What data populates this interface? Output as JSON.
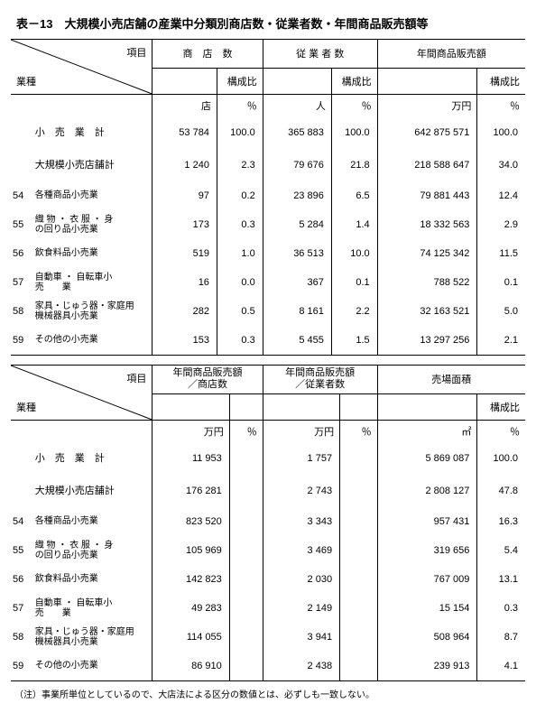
{
  "title": "表－13　大規模小売店舗の産業中分類別商店数・従業者数・年間商品販売額等",
  "diag_labels": {
    "item": "項目",
    "industry": "業種"
  },
  "headers_top": {
    "c1": "商　店　数",
    "c2": "従 業 者 数",
    "c3": "年間商品販売額",
    "ratio": "構成比"
  },
  "units_top": {
    "u1": "店",
    "u2": "％",
    "u3": "人",
    "u4": "％",
    "u5": "万円",
    "u6": "％"
  },
  "rows_top": [
    {
      "code": "",
      "name": "小　売　業　計",
      "v": [
        "53 784",
        "100.0",
        "365 883",
        "100.0",
        "642 875 571",
        "100.0"
      ]
    },
    {
      "code": "",
      "name": "大規模小売店舗計",
      "v": [
        "1 240",
        "2.3",
        "79 676",
        "21.8",
        "218 588 647",
        "34.0"
      ]
    },
    {
      "code": "54",
      "name": "各種商品小売業",
      "v": [
        "97",
        "0.2",
        "23 896",
        "6.5",
        "79 881 443",
        "12.4"
      ]
    },
    {
      "code": "55",
      "name": "織 物 ・ 衣 服 ・ 身\nの回り品小売業",
      "v": [
        "173",
        "0.3",
        "5 284",
        "1.4",
        "18 332 563",
        "2.9"
      ]
    },
    {
      "code": "56",
      "name": "飲食料品小売業",
      "v": [
        "519",
        "1.0",
        "36 513",
        "10.0",
        "74 125 342",
        "11.5"
      ]
    },
    {
      "code": "57",
      "name": "自動車 ・ 自転車小\n売　　業",
      "v": [
        "16",
        "0.0",
        "367",
        "0.1",
        "788 522",
        "0.1"
      ]
    },
    {
      "code": "58",
      "name": "家具・じゅう器・家庭用\n機械器具小売業",
      "v": [
        "282",
        "0.5",
        "8 161",
        "2.2",
        "32 163 521",
        "5.0"
      ]
    },
    {
      "code": "59",
      "name": "その他の小売業",
      "v": [
        "153",
        "0.3",
        "5 455",
        "1.5",
        "13 297 256",
        "2.1"
      ]
    }
  ],
  "headers_bot": {
    "c1": "年間商品販売額\n／商店数",
    "c2": "年間商品販売額\n／従業者数",
    "c3": "売場面積",
    "ratio": "構成比"
  },
  "units_bot": {
    "u1": "万円",
    "u2": "％",
    "u3": "万円",
    "u4": "％",
    "u5": "㎡",
    "u6": "％"
  },
  "rows_bot": [
    {
      "code": "",
      "name": "小　売　業　計",
      "v": [
        "11 953",
        "",
        "1 757",
        "",
        "5 869 087",
        "100.0"
      ]
    },
    {
      "code": "",
      "name": "大規模小売店舗計",
      "v": [
        "176 281",
        "",
        "2 743",
        "",
        "2 808 127",
        "47.8"
      ]
    },
    {
      "code": "54",
      "name": "各種商品小売業",
      "v": [
        "823 520",
        "",
        "3 343",
        "",
        "957 431",
        "16.3"
      ]
    },
    {
      "code": "55",
      "name": "織 物 ・ 衣 服 ・ 身\nの回り品小売業",
      "v": [
        "105 969",
        "",
        "3 469",
        "",
        "319 656",
        "5.4"
      ]
    },
    {
      "code": "56",
      "name": "飲食料品小売業",
      "v": [
        "142 823",
        "",
        "2 030",
        "",
        "767 009",
        "13.1"
      ]
    },
    {
      "code": "57",
      "name": "自動車 ・ 自転車小\n売　　業",
      "v": [
        "49 283",
        "",
        "2 149",
        "",
        "15 154",
        "0.3"
      ]
    },
    {
      "code": "58",
      "name": "家具・じゅう器・家庭用\n機械器具小売業",
      "v": [
        "114 055",
        "",
        "3 941",
        "",
        "508 964",
        "8.7"
      ]
    },
    {
      "code": "59",
      "name": "その他の小売業",
      "v": [
        "86 910",
        "",
        "2 438",
        "",
        "239 913",
        "4.1"
      ]
    }
  ],
  "footnote": "（注）事業所単位としているので、大店法による区分の数値とは、必ずしも一致しない。"
}
